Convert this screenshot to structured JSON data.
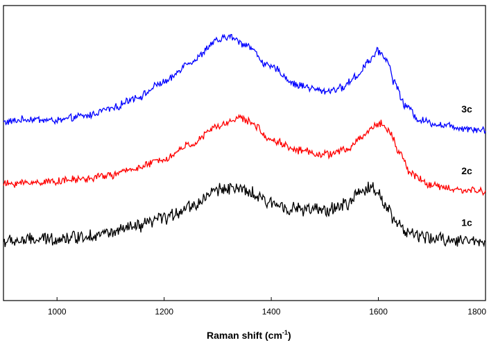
{
  "chart_data": {
    "type": "line",
    "title": "",
    "xlabel": "Raman shift (cm",
    "xlabel_sup": "-1",
    "xlabel_close": ")",
    "ylabel": "",
    "xlim": [
      900,
      1800
    ],
    "ylim": [
      0,
      1
    ],
    "y_ticks_shown": false,
    "grid": false,
    "legend": "none",
    "x_ticks": [
      "1000",
      "1200",
      "1400",
      "1600",
      "1800"
    ],
    "x_tick_values": [
      1000,
      1200,
      1400,
      1600,
      1800
    ],
    "series": [
      {
        "name": "3c",
        "color": "#0000ff",
        "noise": 0.01,
        "x": [
          900,
          950,
          1000,
          1050,
          1100,
          1150,
          1200,
          1250,
          1300,
          1320,
          1350,
          1400,
          1450,
          1500,
          1530,
          1560,
          1580,
          1600,
          1615,
          1630,
          1650,
          1680,
          1720,
          1760,
          1800
        ],
        "y": [
          0.605,
          0.615,
          0.61,
          0.625,
          0.65,
          0.69,
          0.74,
          0.81,
          0.88,
          0.895,
          0.87,
          0.79,
          0.73,
          0.71,
          0.72,
          0.76,
          0.81,
          0.845,
          0.82,
          0.74,
          0.66,
          0.61,
          0.595,
          0.585,
          0.578
        ]
      },
      {
        "name": "2c",
        "color": "#ff0000",
        "noise": 0.01,
        "x": [
          900,
          950,
          1000,
          1050,
          1100,
          1150,
          1200,
          1250,
          1300,
          1340,
          1360,
          1400,
          1450,
          1500,
          1540,
          1570,
          1590,
          1605,
          1620,
          1640,
          1660,
          1700,
          1750,
          1800
        ],
        "y": [
          0.395,
          0.4,
          0.405,
          0.412,
          0.425,
          0.45,
          0.48,
          0.53,
          0.59,
          0.62,
          0.605,
          0.545,
          0.51,
          0.495,
          0.51,
          0.555,
          0.59,
          0.6,
          0.575,
          0.5,
          0.43,
          0.39,
          0.375,
          0.37
        ]
      },
      {
        "name": "1c",
        "color": "#000000",
        "noise": 0.018,
        "x": [
          900,
          950,
          1000,
          1050,
          1100,
          1150,
          1200,
          1250,
          1300,
          1320,
          1350,
          1400,
          1450,
          1500,
          1540,
          1565,
          1585,
          1600,
          1615,
          1635,
          1660,
          1700,
          1750,
          1800
        ],
        "y": [
          0.2,
          0.205,
          0.21,
          0.218,
          0.23,
          0.25,
          0.28,
          0.32,
          0.375,
          0.385,
          0.37,
          0.33,
          0.31,
          0.305,
          0.325,
          0.365,
          0.385,
          0.365,
          0.32,
          0.26,
          0.225,
          0.21,
          0.205,
          0.2
        ]
      }
    ]
  }
}
